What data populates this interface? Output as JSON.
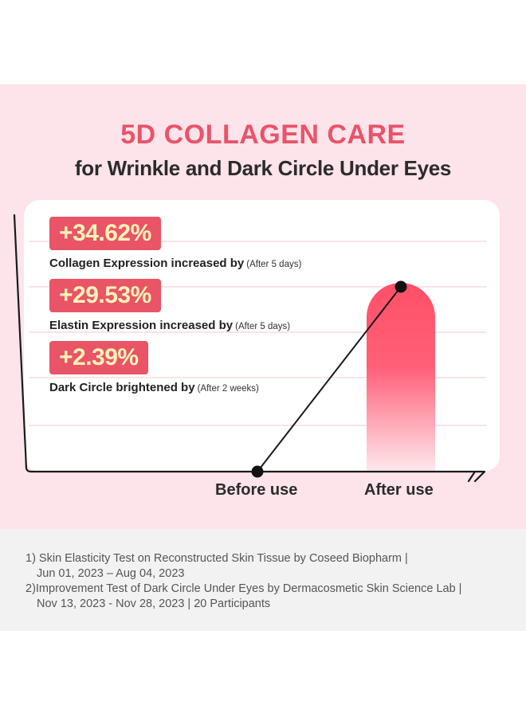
{
  "header": {
    "title": "5D COLLAGEN CARE",
    "subtitle": "for Wrinkle and Dark Circle Under Eyes"
  },
  "stats": [
    {
      "value": "+34.62%",
      "label": "Collagen Expression increased by",
      "note": "(After 5 days)"
    },
    {
      "value": "+29.53%",
      "label": "Elastin Expression increased by",
      "note": "(After 5 days)"
    },
    {
      "value": "+2.39%",
      "label": "Dark Circle brightened by",
      "note": "(After 2 weeks)"
    }
  ],
  "chart_data": {
    "type": "bar",
    "categories": [
      "Before use",
      "After use"
    ],
    "values": [
      0,
      100
    ],
    "value_unit": "relative improvement index (unlabeled axis)",
    "xlabel": "",
    "ylabel": "",
    "ylim": [
      0,
      100
    ],
    "grid": true,
    "line_overlay": true,
    "bar_color": "#ff4b63"
  },
  "footnotes": [
    {
      "line1": "1) Skin Elasticity Test on Reconstructed Skin Tissue by Coseed Biopharm |",
      "line2": "Jun 01, 2023 – Aug 04, 2023"
    },
    {
      "line1": "2)Improvement Test of Dark Circle Under Eyes by Dermacosmetic Skin Science Lab |",
      "line2": "Nov 13, 2023 - Nov 28, 2023 | 20 Participants"
    }
  ],
  "colors": {
    "accent": "#e8546a",
    "badge_bg": "#e95466",
    "badge_text": "#fff3b8",
    "panel_bg": "#fde3ea",
    "gridline": "#f6c9d2"
  }
}
